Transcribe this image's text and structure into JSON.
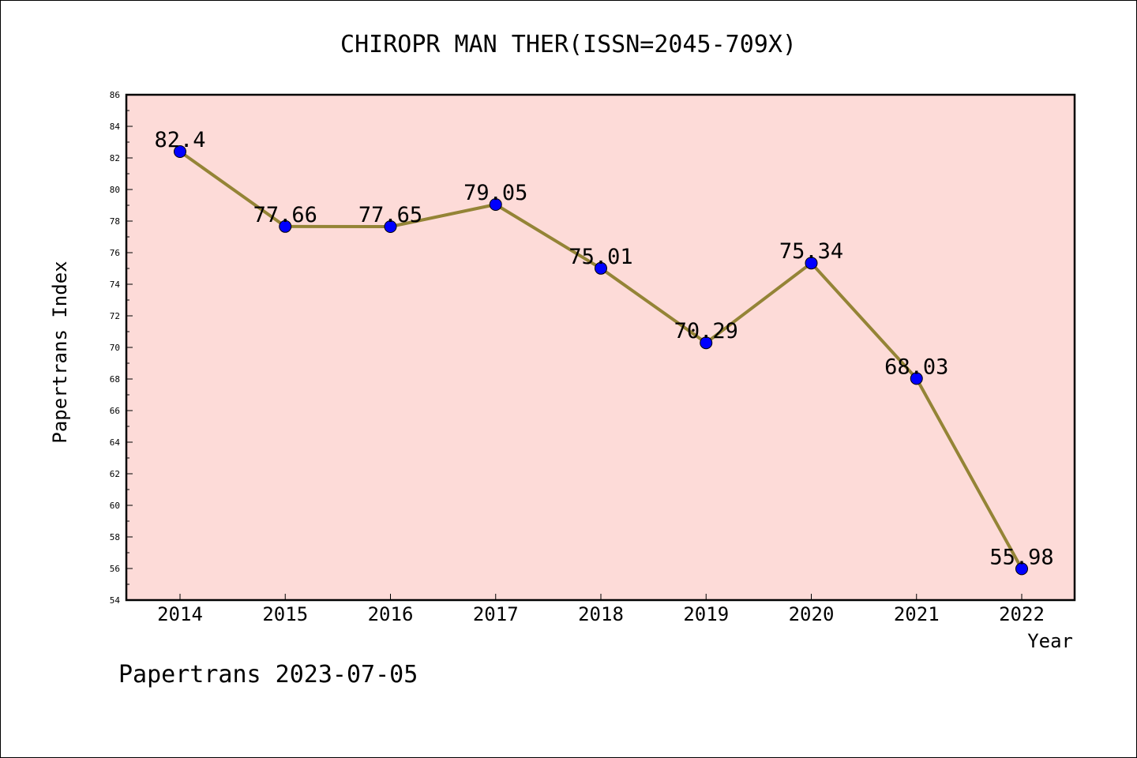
{
  "chart_data": {
    "type": "line",
    "title": "CHIROPR MAN THER(ISSN=2045-709X)",
    "xlabel": "Year",
    "ylabel": "Papertrans Index",
    "categories": [
      "2014",
      "2015",
      "2016",
      "2017",
      "2018",
      "2019",
      "2020",
      "2021",
      "2022"
    ],
    "series": [
      {
        "values": [
          82.4,
          77.66,
          77.65,
          79.05,
          75.01,
          70.29,
          75.34,
          68.03,
          55.98
        ],
        "labels": [
          "82.4",
          "77.66",
          "77.65",
          "79.05",
          "75.01",
          "70.29",
          "75.34",
          "68.03",
          "55.98"
        ]
      }
    ],
    "ylim": [
      54,
      86
    ],
    "yticks": [
      "54",
      "56",
      "58",
      "60",
      "62",
      "64",
      "66",
      "68",
      "70",
      "72",
      "74",
      "76",
      "78",
      "80",
      "82",
      "84",
      "86"
    ],
    "grid": false,
    "colors": {
      "plot_background": "#fddbd8",
      "line": "#948436",
      "marker": "#0000ff"
    }
  },
  "footer": "Papertrans 2023-07-05"
}
